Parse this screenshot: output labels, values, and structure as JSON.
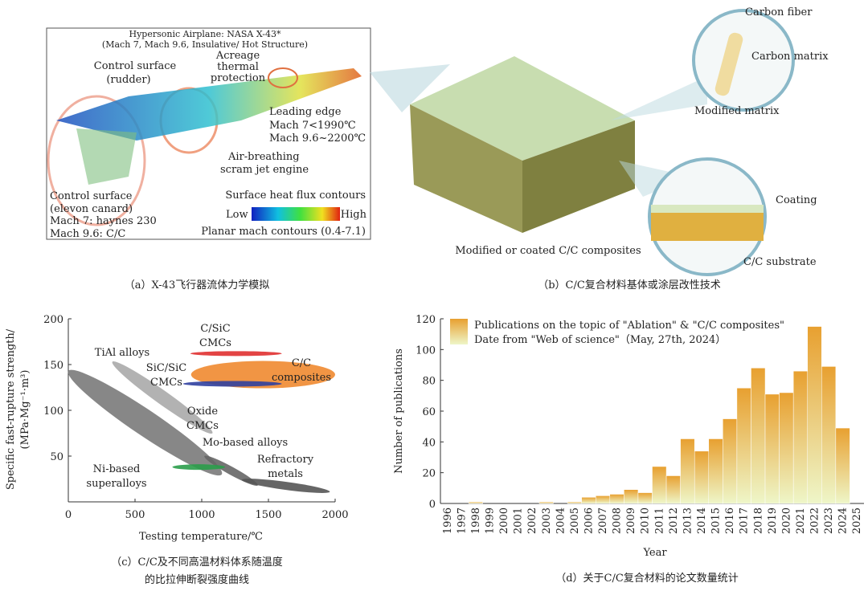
{
  "figure_a": {
    "title": "Hypersonic Airplane: NASA X-43*",
    "subtitle": "(Mach 7, Mach 9.6, Insulative/ Hot Structure)",
    "rudder": [
      "Control surface",
      "(rudder)"
    ],
    "acreage": [
      "Acreage",
      "thermal",
      "protection"
    ],
    "leading_edge": [
      "Leading edge",
      "Mach 7<1990℃",
      "Mach 9.6~2200℃"
    ],
    "engine": [
      "Air-breathing",
      "scram jet engine"
    ],
    "canard": [
      "Control surface",
      "(elevon canard)",
      "Mach 7: haynes 230",
      "Mach 9.6: C/C"
    ],
    "heat_flux": "Surface heat flux contours",
    "low": "Low",
    "high": "High",
    "mach": "Planar mach contours (0.4-7.1)",
    "caption": "（a）X-43飞行器流体力学模拟"
  },
  "figure_b": {
    "fiber": "Carbon fiber",
    "matrix": "Carbon matrix",
    "modified": "Modified matrix",
    "coating": "Coating",
    "substrate": "C/C substrate",
    "label": "Modified or coated C/C composites",
    "caption": "（b）C/C复合材料基体或涂层改性技术"
  },
  "chart_data": [
    {
      "type": "region",
      "xlabel": "Testing temperature/℃",
      "ylabel": [
        "Specific fast-rupture strength/",
        "(MPa·Mg⁻¹·m³)"
      ],
      "xlim": [
        0,
        2000
      ],
      "xticks": [
        0,
        500,
        1000,
        1500,
        2000
      ],
      "ylim": [
        0,
        200
      ],
      "yticks": [
        50,
        100,
        150,
        200
      ],
      "regions": [
        {
          "name": [
            "Ni-based",
            "superalloys"
          ],
          "color": "#7a7a7a",
          "x": [
            0,
            1150
          ],
          "y": [
            143,
            30
          ]
        },
        {
          "name": [
            "TiAl alloys"
          ],
          "color": "#aaaaaa",
          "x": [
            330,
            1080
          ],
          "y": [
            153,
            75
          ]
        },
        {
          "name": [
            "Mo-based alloys"
          ],
          "color": "#666666",
          "x": [
            1020,
            1420
          ],
          "y": [
            50,
            18
          ]
        },
        {
          "name": [
            "Refractory",
            "metals"
          ],
          "color": "#555555",
          "x": [
            1300,
            1960
          ],
          "y": [
            24,
            11
          ]
        },
        {
          "name": [
            "Oxide",
            "CMCs"
          ],
          "color": "#2a9d4a",
          "x": [
            780,
            1175
          ],
          "y": [
            38,
            38
          ]
        },
        {
          "name": [
            "C/C",
            "composites"
          ],
          "color": "#f08a30",
          "x": [
            920,
            2000
          ],
          "y": [
            139,
            139
          ]
        },
        {
          "name": [
            "C/SiC",
            "CMCs"
          ],
          "color": "#e03030",
          "x": [
            915,
            1600
          ],
          "y": [
            162,
            162
          ]
        },
        {
          "name": [
            "SiC/SiC",
            "CMCs"
          ],
          "color": "#3040a0",
          "x": [
            860,
            1600
          ],
          "y": [
            129,
            129
          ]
        }
      ],
      "caption": [
        "（c）C/C及不同高温材料体系随温度",
        "的比拉伸断裂强度曲线"
      ]
    },
    {
      "type": "bar",
      "xlabel": "Year",
      "ylabel": "Number of publications",
      "color": "#e8a030",
      "legend": [
        "Publications on the topic of \"Ablation\" & \"C/C composites\"",
        "Date from \"Web of science\"（May, 27th, 2024）"
      ],
      "categories": [
        "1996",
        "1997",
        "1998",
        "1999",
        "2000",
        "2001",
        "2002",
        "2003",
        "2004",
        "2005",
        "2006",
        "2007",
        "2008",
        "2009",
        "2010",
        "2011",
        "2012",
        "2013",
        "2014",
        "2015",
        "2016",
        "2017",
        "2018",
        "2019",
        "2020",
        "2021",
        "2022",
        "2023",
        "2024",
        "2025"
      ],
      "values": [
        0,
        0,
        1,
        0,
        0,
        0,
        0,
        1,
        0,
        1,
        4,
        5,
        6,
        9,
        7,
        24,
        18,
        42,
        34,
        42,
        55,
        75,
        88,
        71,
        72,
        86,
        115,
        89,
        49,
        0
      ],
      "ylim": [
        0,
        120
      ],
      "yticks": [
        0,
        20,
        40,
        60,
        80,
        100,
        120
      ],
      "caption": "（d）关于C/C复合材料的论文数量统计"
    }
  ]
}
